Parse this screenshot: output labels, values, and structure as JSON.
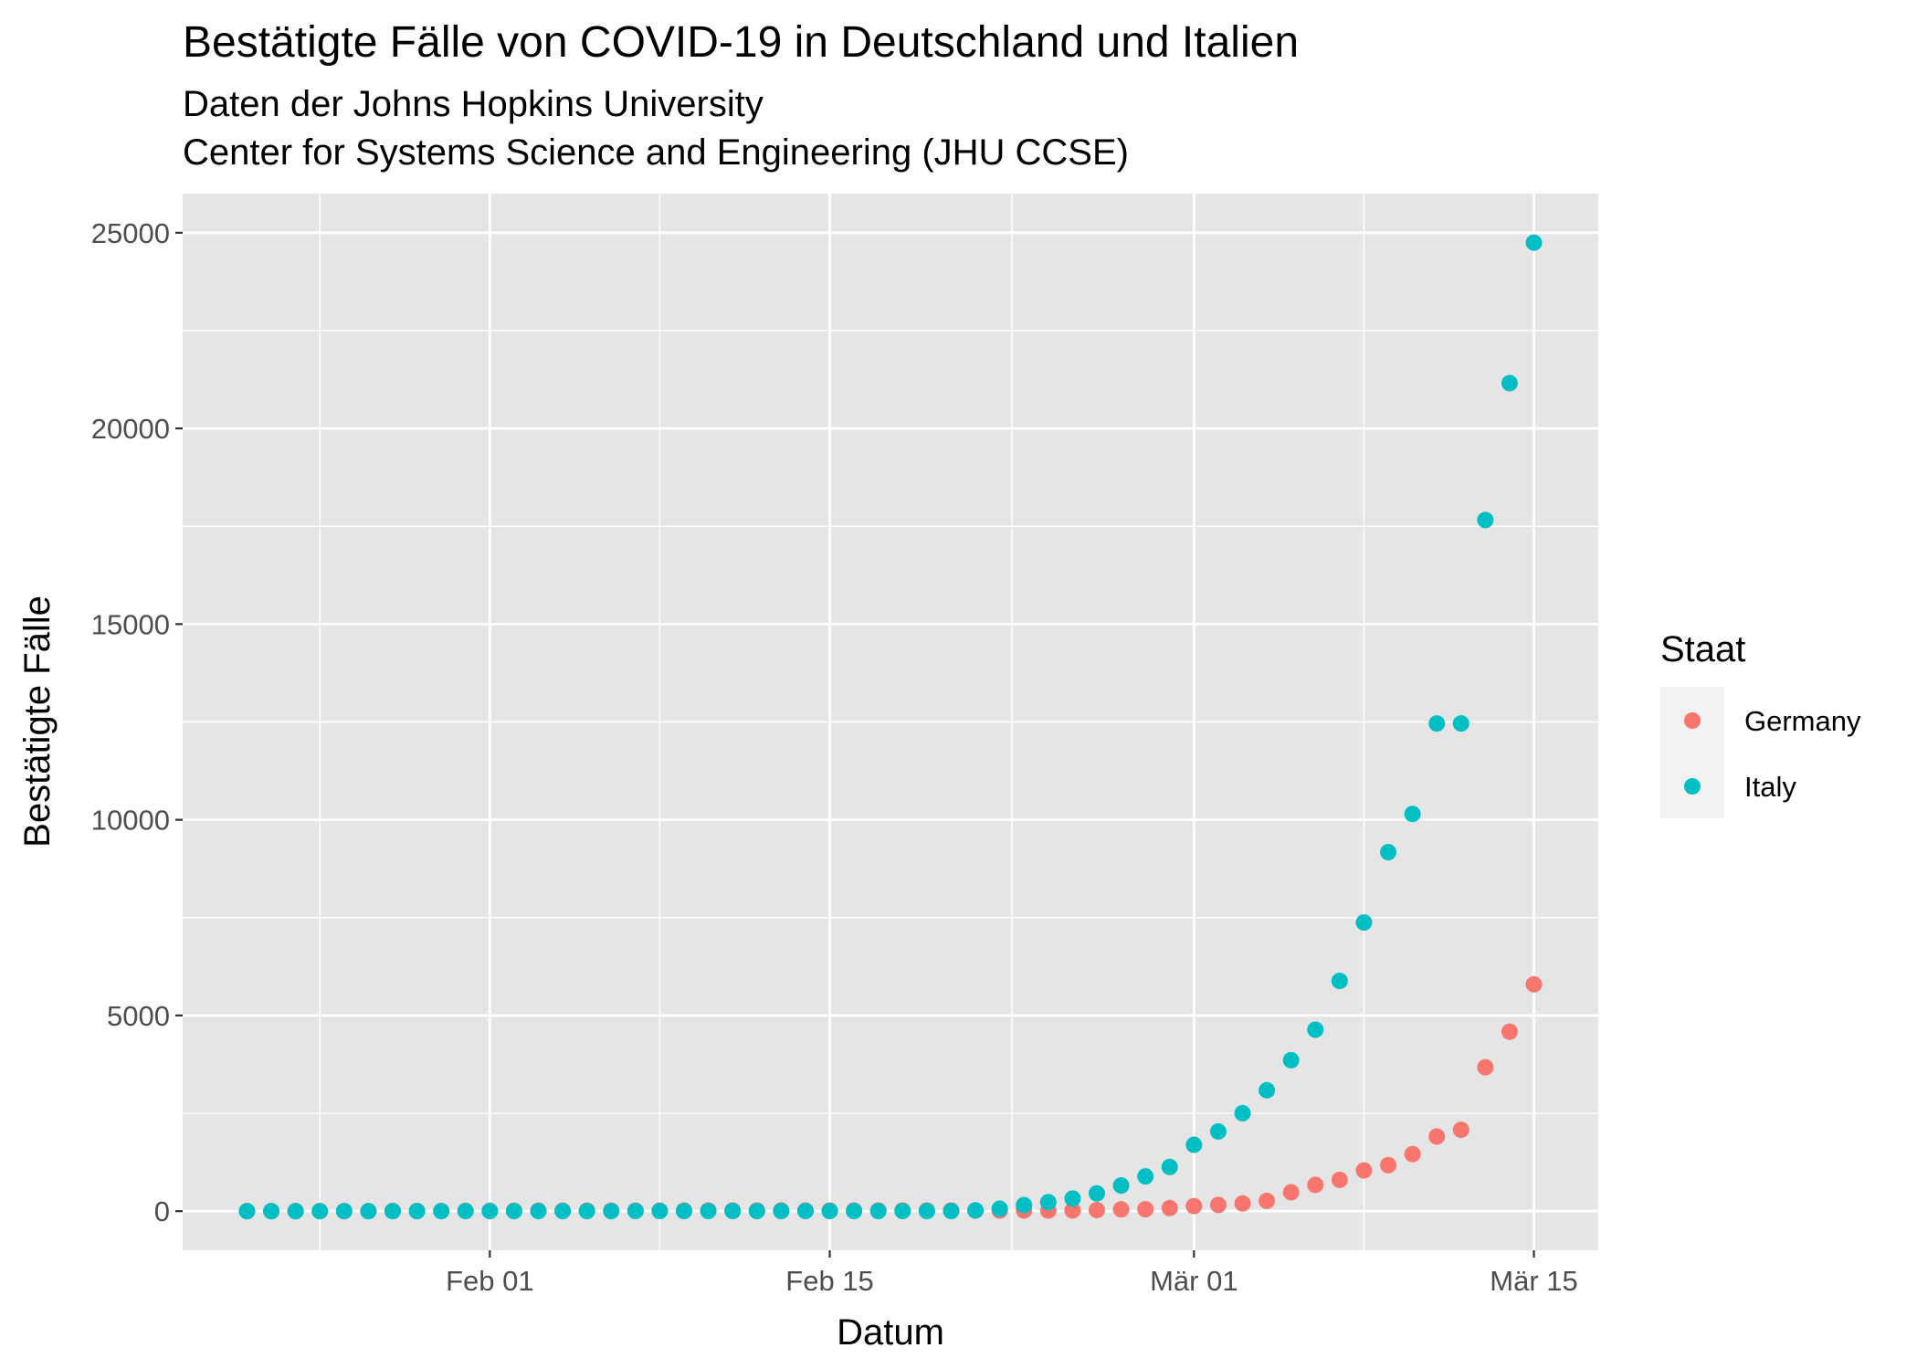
{
  "colors": {
    "panel": "#e5e5e5",
    "grid": "#ffffff",
    "germany": "#f8766d",
    "italy": "#00bfc4"
  },
  "chart_data": {
    "type": "scatter",
    "title": "Bestätigte Fälle von COVID-19 in Deutschland und Italien",
    "subtitle_line1": "Daten der Johns Hopkins University",
    "subtitle_line2": "Center for Systems Science and Engineering (JHU CCSE)",
    "xlabel": "Datum",
    "ylabel": "Bestätigte Fälle",
    "x_ticks": [
      "Feb 01",
      "Feb 15",
      "Mär 01",
      "Mär 15"
    ],
    "y_ticks": [
      "0",
      "5000",
      "10000",
      "15000",
      "20000",
      "25000"
    ],
    "ylim": [
      -1000,
      26000
    ],
    "grid": true,
    "legend": {
      "title": "Staat",
      "placement": "right"
    },
    "x_dates": [
      "2020-01-22",
      "2020-01-23",
      "2020-01-24",
      "2020-01-25",
      "2020-01-26",
      "2020-01-27",
      "2020-01-28",
      "2020-01-29",
      "2020-01-30",
      "2020-01-31",
      "2020-02-01",
      "2020-02-02",
      "2020-02-03",
      "2020-02-04",
      "2020-02-05",
      "2020-02-06",
      "2020-02-07",
      "2020-02-08",
      "2020-02-09",
      "2020-02-10",
      "2020-02-11",
      "2020-02-12",
      "2020-02-13",
      "2020-02-14",
      "2020-02-15",
      "2020-02-16",
      "2020-02-17",
      "2020-02-18",
      "2020-02-19",
      "2020-02-20",
      "2020-02-21",
      "2020-02-22",
      "2020-02-23",
      "2020-02-24",
      "2020-02-25",
      "2020-02-26",
      "2020-02-27",
      "2020-02-28",
      "2020-02-29",
      "2020-03-01",
      "2020-03-02",
      "2020-03-03",
      "2020-03-04",
      "2020-03-05",
      "2020-03-06",
      "2020-03-07",
      "2020-03-08",
      "2020-03-09",
      "2020-03-10",
      "2020-03-11",
      "2020-03-12",
      "2020-03-13",
      "2020-03-14",
      "2020-03-15"
    ],
    "series": [
      {
        "name": "Germany",
        "color": "#f8766d",
        "values": [
          0,
          0,
          0,
          0,
          0,
          1,
          4,
          4,
          4,
          5,
          8,
          10,
          12,
          12,
          12,
          12,
          13,
          13,
          14,
          14,
          16,
          16,
          16,
          16,
          16,
          16,
          16,
          16,
          16,
          16,
          16,
          16,
          16,
          16,
          17,
          27,
          46,
          48,
          79,
          130,
          159,
          196,
          262,
          482,
          670,
          799,
          1040,
          1176,
          1457,
          1908,
          2078,
          3675,
          4585,
          5795
        ]
      },
      {
        "name": "Italy",
        "color": "#00bfc4",
        "values": [
          0,
          0,
          0,
          0,
          0,
          0,
          0,
          0,
          0,
          2,
          2,
          2,
          2,
          2,
          2,
          2,
          3,
          3,
          3,
          3,
          3,
          3,
          3,
          3,
          3,
          3,
          3,
          3,
          3,
          3,
          20,
          62,
          155,
          229,
          322,
          453,
          655,
          888,
          1128,
          1694,
          2036,
          2502,
          3089,
          3858,
          4636,
          5883,
          7375,
          9172,
          10149,
          12462,
          12462,
          17660,
          21157,
          24747
        ]
      }
    ]
  }
}
